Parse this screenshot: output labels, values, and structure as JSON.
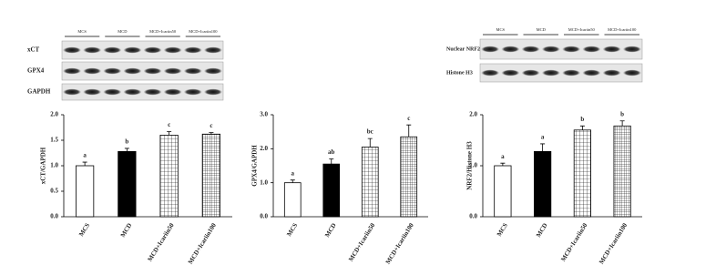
{
  "blots": {
    "left": {
      "lanes": [
        "MCS",
        "MCD",
        "MCD+Icariin50",
        "MCD+Icariin100"
      ],
      "rows": [
        "xCT",
        "GPX4",
        "GAPDH"
      ]
    },
    "right": {
      "lanes": [
        "MCS",
        "MCD",
        "MCD+Icariin50",
        "MCD+Icariin100"
      ],
      "rows": [
        "Nuclear NRF2",
        "Histone H3"
      ]
    }
  },
  "chart_data": [
    {
      "type": "bar",
      "ylabel": "xCT/GAPDH",
      "categories": [
        "MCS",
        "MCD",
        "MCD+Icariin50",
        "MCD+Icariin100"
      ],
      "values": [
        1.0,
        1.28,
        1.6,
        1.62
      ],
      "errors": [
        0.07,
        0.06,
        0.07,
        0.03
      ],
      "annotations": [
        "a",
        "b",
        "c",
        "c"
      ],
      "colors": [
        "#ffffff",
        "#000000",
        "#000000",
        "#000000"
      ],
      "patterns": [
        "solid",
        "solid",
        "grid",
        "fine-grid"
      ],
      "ylim": [
        0,
        2
      ],
      "yticks": [
        {
          "value": 0,
          "label": "0.0"
        },
        {
          "value": 0.5,
          "label": "0.5"
        },
        {
          "value": 1,
          "label": "1.0"
        },
        {
          "value": 1.5,
          "label": "1.5"
        },
        {
          "value": 2,
          "label": "2.0"
        }
      ]
    },
    {
      "type": "bar",
      "ylabel": "GPX4/GAPDH",
      "categories": [
        "MCS",
        "MCD",
        "MCD+Icariin50",
        "MCD+Icariin100"
      ],
      "values": [
        1.0,
        1.55,
        2.05,
        2.35
      ],
      "errors": [
        0.08,
        0.15,
        0.25,
        0.35
      ],
      "annotations": [
        "a",
        "ab",
        "bc",
        "c"
      ],
      "colors": [
        "#ffffff",
        "#000000",
        "#000000",
        "#000000"
      ],
      "patterns": [
        "solid",
        "solid",
        "grid",
        "fine-grid"
      ],
      "ylim": [
        0,
        3
      ],
      "yticks": [
        {
          "value": 0,
          "label": "0.0"
        },
        {
          "value": 1,
          "label": "1.0"
        },
        {
          "value": 2,
          "label": "2.0"
        },
        {
          "value": 3,
          "label": "3.0"
        }
      ]
    },
    {
      "type": "bar",
      "ylabel": "NRF2/Histone H3",
      "categories": [
        "MCS",
        "MCD",
        "MCD+Icariin50",
        "MCD+Icariin100"
      ],
      "values": [
        1.0,
        1.28,
        1.7,
        1.78
      ],
      "errors": [
        0.05,
        0.15,
        0.08,
        0.1
      ],
      "annotations": [
        "a",
        "a",
        "b",
        "b"
      ],
      "colors": [
        "#ffffff",
        "#000000",
        "#000000",
        "#000000"
      ],
      "patterns": [
        "solid",
        "solid",
        "grid",
        "fine-grid"
      ],
      "ylim": [
        0,
        2
      ],
      "yticks": [
        {
          "value": 0,
          "label": "0.0"
        },
        {
          "value": 1,
          "label": "1.0"
        },
        {
          "value": 2,
          "label": "2.0"
        }
      ]
    }
  ]
}
